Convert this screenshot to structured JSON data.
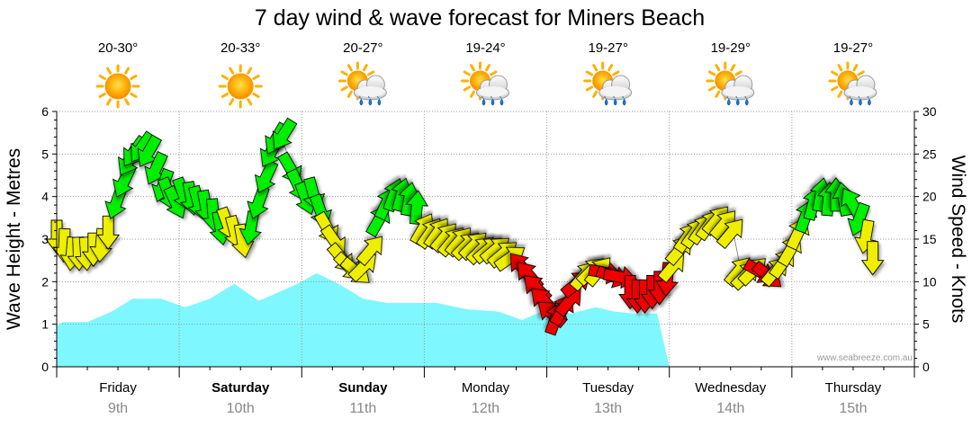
{
  "chart_data": {
    "type": "area",
    "title": "7 day wind & wave forecast for Miners Beach",
    "y_left_label": "Wave Height - Metres",
    "y_right_label": "Wind Speed - Knots",
    "y_left_range": [
      0,
      6
    ],
    "y_left_ticks": [
      "0",
      "1",
      "2",
      "3",
      "4",
      "5",
      "6"
    ],
    "y_right_range": [
      0,
      30
    ],
    "y_right_ticks": [
      "0",
      "5",
      "10",
      "15",
      "20",
      "25",
      "30"
    ],
    "credit": "www.seabreeze.com.au",
    "x_unit": "days from Friday 9th 00:00",
    "days": [
      {
        "name": "Friday",
        "date": "9th",
        "bold": false,
        "temp": "20-30°",
        "weather": "sunny"
      },
      {
        "name": "Saturday",
        "date": "10th",
        "bold": true,
        "temp": "20-33°",
        "weather": "sunny"
      },
      {
        "name": "Sunday",
        "date": "11th",
        "bold": true,
        "temp": "20-27°",
        "weather": "rain-showers"
      },
      {
        "name": "Monday",
        "date": "12th",
        "bold": false,
        "temp": "19-24°",
        "weather": "rain-showers"
      },
      {
        "name": "Tuesday",
        "date": "13th",
        "bold": false,
        "temp": "19-27°",
        "weather": "rain-showers"
      },
      {
        "name": "Wednesday",
        "date": "14th",
        "bold": false,
        "temp": "19-29°",
        "weather": "rain-showers"
      },
      {
        "name": "Thursday",
        "date": "15th",
        "bold": false,
        "temp": "19-27°",
        "weather": "rain-showers"
      }
    ],
    "wave_series": {
      "name": "Wave Height",
      "color": "#7ff7ff",
      "x": [
        0,
        0.05,
        0.25,
        0.45,
        0.62,
        0.85,
        1.05,
        1.25,
        1.45,
        1.65,
        1.85,
        2.0,
        2.12,
        2.3,
        2.5,
        2.7,
        2.95,
        3.1,
        3.35,
        3.6,
        3.8,
        4.0,
        4.2,
        4.4,
        4.55,
        4.7,
        4.9,
        5.0,
        5.05
      ],
      "values": [
        0.95,
        1.05,
        1.05,
        1.3,
        1.6,
        1.6,
        1.4,
        1.6,
        1.95,
        1.55,
        1.8,
        2.0,
        2.2,
        1.95,
        1.6,
        1.5,
        1.5,
        1.5,
        1.35,
        1.3,
        1.1,
        1.35,
        1.25,
        1.4,
        1.3,
        1.25,
        1.25,
        0,
        0
      ]
    },
    "wind_series": {
      "name": "Wind Speed",
      "colors": {
        "light": "#00ee00",
        "moderate": "#eeee00",
        "strong": "#ee0000"
      },
      "points": [
        {
          "x": 0.0,
          "knots": 15,
          "level": "moderate",
          "dir": 180
        },
        {
          "x": 0.06,
          "knots": 14,
          "level": "moderate",
          "dir": 182
        },
        {
          "x": 0.12,
          "knots": 13,
          "level": "moderate",
          "dir": 185
        },
        {
          "x": 0.18,
          "knots": 13,
          "level": "moderate",
          "dir": 178
        },
        {
          "x": 0.24,
          "knots": 13,
          "level": "moderate",
          "dir": 176
        },
        {
          "x": 0.3,
          "knots": 13.5,
          "level": "moderate",
          "dir": 180
        },
        {
          "x": 0.36,
          "knots": 14,
          "level": "moderate",
          "dir": 185
        },
        {
          "x": 0.42,
          "knots": 15.5,
          "level": "moderate",
          "dir": 180
        },
        {
          "x": 0.48,
          "knots": 19,
          "level": "light",
          "dir": 200
        },
        {
          "x": 0.54,
          "knots": 21.5,
          "level": "light",
          "dir": 205
        },
        {
          "x": 0.58,
          "knots": 24,
          "level": "light",
          "dir": 210
        },
        {
          "x": 0.62,
          "knots": 25,
          "level": "light",
          "dir": 215
        },
        {
          "x": 0.68,
          "knots": 25.5,
          "level": "light",
          "dir": 215
        },
        {
          "x": 0.74,
          "knots": 25,
          "level": "light",
          "dir": 210
        },
        {
          "x": 0.8,
          "knots": 23,
          "level": "light",
          "dir": 205
        },
        {
          "x": 0.86,
          "knots": 21,
          "level": "light",
          "dir": 200
        },
        {
          "x": 0.92,
          "knots": 20,
          "level": "light",
          "dir": 160
        },
        {
          "x": 0.98,
          "knots": 19,
          "level": "light",
          "dir": 155
        },
        {
          "x": 1.04,
          "knots": 20,
          "level": "light",
          "dir": 160
        },
        {
          "x": 1.1,
          "knots": 19.5,
          "level": "light",
          "dir": 170
        },
        {
          "x": 1.16,
          "knots": 19,
          "level": "light",
          "dir": 165
        },
        {
          "x": 1.22,
          "knots": 18.5,
          "level": "light",
          "dir": 170
        },
        {
          "x": 1.28,
          "knots": 17.5,
          "level": "light",
          "dir": 175
        },
        {
          "x": 1.34,
          "knots": 16,
          "level": "light",
          "dir": 170
        },
        {
          "x": 1.4,
          "knots": 16.5,
          "level": "moderate",
          "dir": 160
        },
        {
          "x": 1.46,
          "knots": 15.5,
          "level": "moderate",
          "dir": 165
        },
        {
          "x": 1.52,
          "knots": 14.5,
          "level": "moderate",
          "dir": 170
        },
        {
          "x": 1.58,
          "knots": 16,
          "level": "light",
          "dir": 190
        },
        {
          "x": 1.64,
          "knots": 19,
          "level": "light",
          "dir": 200
        },
        {
          "x": 1.7,
          "knots": 22,
          "level": "light",
          "dir": 205
        },
        {
          "x": 1.74,
          "knots": 25,
          "level": "light",
          "dir": 210
        },
        {
          "x": 1.78,
          "knots": 26.5,
          "level": "light",
          "dir": 210
        },
        {
          "x": 1.84,
          "knots": 27,
          "level": "light",
          "dir": 212
        },
        {
          "x": 1.92,
          "knots": 23,
          "level": "light",
          "dir": 150
        },
        {
          "x": 1.98,
          "knots": 21,
          "level": "light",
          "dir": 155
        },
        {
          "x": 2.04,
          "knots": 19.5,
          "level": "light",
          "dir": 160
        },
        {
          "x": 2.1,
          "knots": 20,
          "level": "light",
          "dir": 165
        },
        {
          "x": 2.16,
          "knots": 18,
          "level": "light",
          "dir": 160
        },
        {
          "x": 2.22,
          "knots": 16,
          "level": "moderate",
          "dir": 150
        },
        {
          "x": 2.28,
          "knots": 14.5,
          "level": "moderate",
          "dir": 145
        },
        {
          "x": 2.34,
          "knots": 12.5,
          "level": "moderate",
          "dir": 140
        },
        {
          "x": 2.4,
          "knots": 11.5,
          "level": "moderate",
          "dir": 135
        },
        {
          "x": 2.46,
          "knots": 11,
          "level": "moderate",
          "dir": 130
        },
        {
          "x": 2.52,
          "knots": 12,
          "level": "moderate",
          "dir": 45
        },
        {
          "x": 2.58,
          "knots": 14,
          "level": "moderate",
          "dir": 40
        },
        {
          "x": 2.64,
          "knots": 17.5,
          "level": "light",
          "dir": 30
        },
        {
          "x": 2.7,
          "knots": 19.5,
          "level": "light",
          "dir": 25
        },
        {
          "x": 2.76,
          "knots": 20.5,
          "level": "light",
          "dir": 20
        },
        {
          "x": 2.82,
          "knots": 20.5,
          "level": "light",
          "dir": 15
        },
        {
          "x": 2.88,
          "knots": 20,
          "level": "light",
          "dir": 10
        },
        {
          "x": 2.94,
          "knots": 19,
          "level": "light",
          "dir": 5
        },
        {
          "x": 3.0,
          "knots": 16.5,
          "level": "moderate",
          "dir": 30
        },
        {
          "x": 3.06,
          "knots": 16,
          "level": "moderate",
          "dir": 35
        },
        {
          "x": 3.12,
          "knots": 16,
          "level": "moderate",
          "dir": 35
        },
        {
          "x": 3.18,
          "knots": 15.5,
          "level": "moderate",
          "dir": 40
        },
        {
          "x": 3.24,
          "knots": 15,
          "level": "moderate",
          "dir": 40
        },
        {
          "x": 3.3,
          "knots": 15,
          "level": "moderate",
          "dir": 40
        },
        {
          "x": 3.36,
          "knots": 14.5,
          "level": "moderate",
          "dir": 45
        },
        {
          "x": 3.42,
          "knots": 14.5,
          "level": "moderate",
          "dir": 45
        },
        {
          "x": 3.48,
          "knots": 14,
          "level": "moderate",
          "dir": 45
        },
        {
          "x": 3.54,
          "knots": 14,
          "level": "moderate",
          "dir": 50
        },
        {
          "x": 3.6,
          "knots": 14,
          "level": "moderate",
          "dir": 50
        },
        {
          "x": 3.66,
          "knots": 13.5,
          "level": "moderate",
          "dir": 50
        },
        {
          "x": 3.72,
          "knots": 13,
          "level": "moderate",
          "dir": 55
        },
        {
          "x": 3.78,
          "knots": 12,
          "level": "strong",
          "dir": 320
        },
        {
          "x": 3.84,
          "knots": 11,
          "level": "strong",
          "dir": 320
        },
        {
          "x": 3.9,
          "knots": 9.5,
          "level": "strong",
          "dir": 315
        },
        {
          "x": 3.96,
          "knots": 8,
          "level": "strong",
          "dir": 315
        },
        {
          "x": 4.02,
          "knots": 6.5,
          "level": "strong",
          "dir": 310
        },
        {
          "x": 4.08,
          "knots": 6,
          "level": "strong",
          "dir": 20
        },
        {
          "x": 4.14,
          "knots": 7,
          "level": "strong",
          "dir": 30
        },
        {
          "x": 4.2,
          "knots": 8,
          "level": "strong",
          "dir": 40
        },
        {
          "x": 4.26,
          "knots": 10,
          "level": "strong",
          "dir": 50
        },
        {
          "x": 4.32,
          "knots": 11,
          "level": "moderate",
          "dir": 40
        },
        {
          "x": 4.38,
          "knots": 11.5,
          "level": "moderate",
          "dir": 45
        },
        {
          "x": 4.44,
          "knots": 11.5,
          "level": "moderate",
          "dir": 40
        },
        {
          "x": 4.5,
          "knots": 11,
          "level": "strong",
          "dir": 100
        },
        {
          "x": 4.56,
          "knots": 10.5,
          "level": "strong",
          "dir": 110
        },
        {
          "x": 4.62,
          "knots": 10.5,
          "level": "strong",
          "dir": 100
        },
        {
          "x": 4.68,
          "knots": 8.5,
          "level": "strong",
          "dir": 180
        },
        {
          "x": 4.74,
          "knots": 8,
          "level": "strong",
          "dir": 180
        },
        {
          "x": 4.8,
          "knots": 8,
          "level": "strong",
          "dir": 180
        },
        {
          "x": 4.86,
          "knots": 8.5,
          "level": "strong",
          "dir": 180
        },
        {
          "x": 4.92,
          "knots": 9,
          "level": "strong",
          "dir": 180
        },
        {
          "x": 4.98,
          "knots": 10,
          "level": "strong",
          "dir": 185
        },
        {
          "x": 5.04,
          "knots": 12,
          "level": "moderate",
          "dir": 40
        },
        {
          "x": 5.1,
          "knots": 14,
          "level": "moderate",
          "dir": 40
        },
        {
          "x": 5.16,
          "knots": 15.5,
          "level": "moderate",
          "dir": 35
        },
        {
          "x": 5.22,
          "knots": 16,
          "level": "moderate",
          "dir": 35
        },
        {
          "x": 5.28,
          "knots": 16.5,
          "level": "moderate",
          "dir": 35
        },
        {
          "x": 5.34,
          "knots": 17,
          "level": "moderate",
          "dir": 35
        },
        {
          "x": 5.4,
          "knots": 17.5,
          "level": "moderate",
          "dir": 40
        },
        {
          "x": 5.46,
          "knots": 17,
          "level": "moderate",
          "dir": 40
        },
        {
          "x": 5.52,
          "knots": 16,
          "level": "moderate",
          "dir": 40
        },
        {
          "x": 5.58,
          "knots": 11.5,
          "level": "moderate",
          "dir": 40
        },
        {
          "x": 5.64,
          "knots": 11,
          "level": "moderate",
          "dir": 45
        },
        {
          "x": 5.7,
          "knots": 11.5,
          "level": "moderate",
          "dir": 45
        },
        {
          "x": 5.76,
          "knots": 11,
          "level": "strong",
          "dir": 120
        },
        {
          "x": 5.82,
          "knots": 10.5,
          "level": "strong",
          "dir": 130
        },
        {
          "x": 5.88,
          "knots": 11.5,
          "level": "moderate",
          "dir": 40
        },
        {
          "x": 5.94,
          "knots": 12.5,
          "level": "moderate",
          "dir": 35
        },
        {
          "x": 6.0,
          "knots": 14,
          "level": "moderate",
          "dir": 30
        },
        {
          "x": 6.06,
          "knots": 16,
          "level": "moderate",
          "dir": 25
        },
        {
          "x": 6.12,
          "knots": 18,
          "level": "light",
          "dir": 20
        },
        {
          "x": 6.18,
          "knots": 19.5,
          "level": "light",
          "dir": 15
        },
        {
          "x": 6.24,
          "knots": 20.5,
          "level": "light",
          "dir": 10
        },
        {
          "x": 6.3,
          "knots": 20,
          "level": "light",
          "dir": 5
        },
        {
          "x": 6.36,
          "knots": 20.5,
          "level": "light",
          "dir": 0
        },
        {
          "x": 6.42,
          "knots": 20,
          "level": "light",
          "dir": 350
        },
        {
          "x": 6.48,
          "knots": 19.5,
          "level": "light",
          "dir": 330
        },
        {
          "x": 6.54,
          "knots": 17,
          "level": "light",
          "dir": 200
        },
        {
          "x": 6.6,
          "knots": 15,
          "level": "moderate",
          "dir": 190
        },
        {
          "x": 6.66,
          "knots": 12.5,
          "level": "moderate",
          "dir": 180
        }
      ]
    }
  },
  "colors": {
    "grid": "#9a9a9a",
    "axis": "#000000",
    "wave": "#7ff7ff",
    "date": "#888888"
  }
}
